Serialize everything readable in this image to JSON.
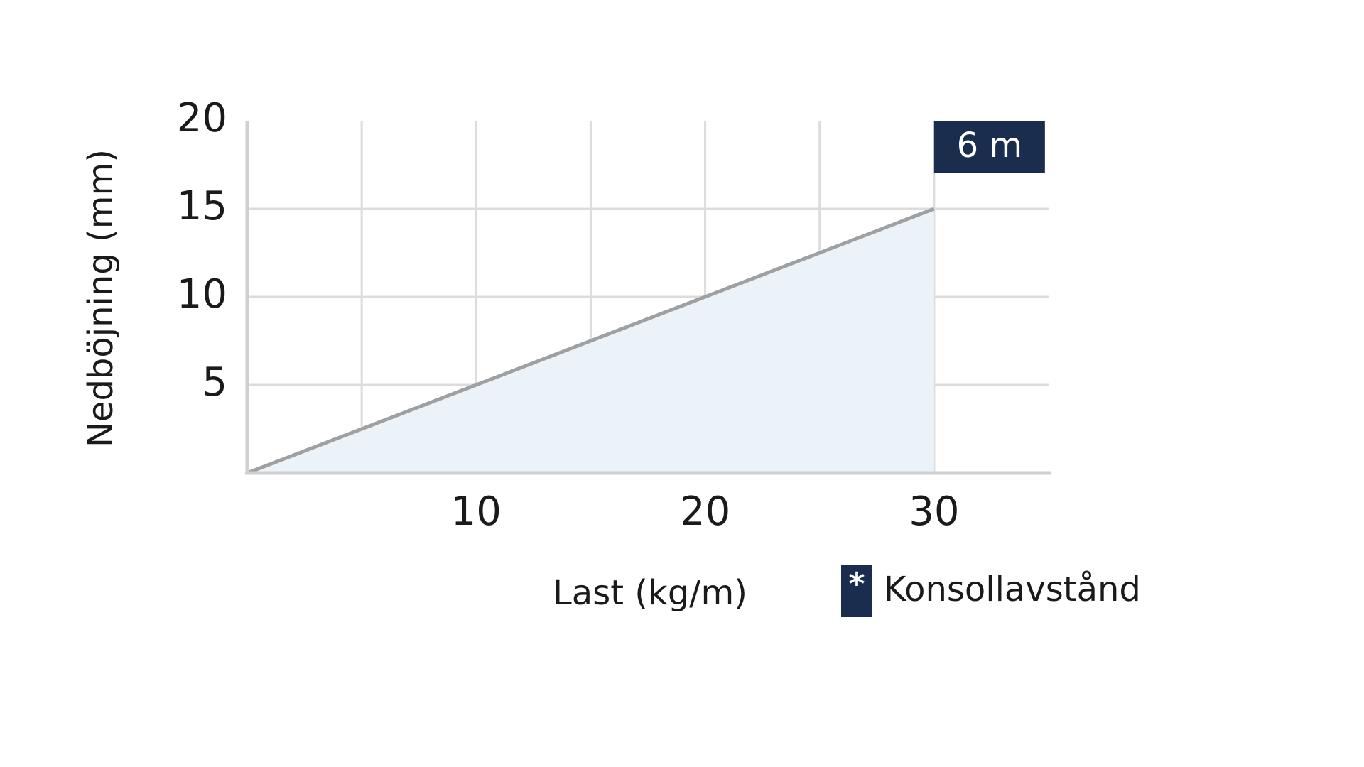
{
  "chart_data": {
    "type": "area",
    "x_label": "Last (kg/m)",
    "y_label": "Nedböjning (mm)",
    "x": [
      0,
      30
    ],
    "series": [
      {
        "name": "6 m",
        "color": "#a0a0a0",
        "fill": "#ebf3f9",
        "label_color": "#1b2d4f",
        "values": [
          0,
          15
        ]
      }
    ],
    "xlim": [
      0,
      35
    ],
    "ylim": [
      0,
      20
    ],
    "xticks": [
      10,
      20,
      30
    ],
    "yticks": [
      5,
      10,
      15,
      20
    ],
    "xgrid": [
      5,
      10,
      15,
      20,
      25,
      30
    ],
    "ygrid": [
      5,
      10,
      15
    ],
    "grid": true,
    "legend_marker": "*",
    "legend_label": "Konsollavstånd",
    "legend_color": "#1b2d4f"
  }
}
